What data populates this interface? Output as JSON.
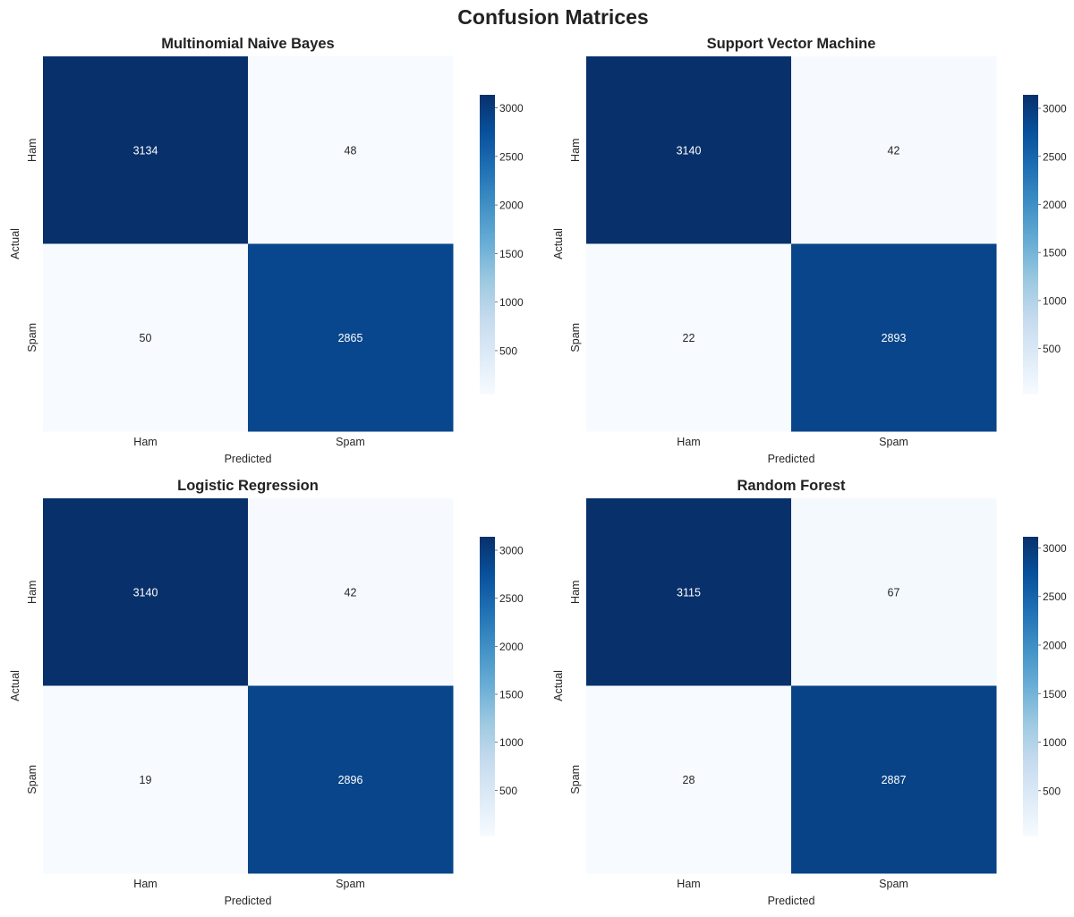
{
  "title": "Confusion Matrices",
  "chart_data": [
    {
      "type": "heatmap",
      "title": "Multinomial Naive Bayes",
      "xlabel": "Predicted",
      "ylabel": "Actual",
      "x_categories": [
        "Ham",
        "Spam"
      ],
      "y_categories": [
        "Ham",
        "Spam"
      ],
      "values": [
        [
          3134,
          48
        ],
        [
          50,
          2865
        ]
      ],
      "colorbar_ticks": [
        500,
        1000,
        1500,
        2000,
        2500,
        3000
      ],
      "colorbar_range": [
        48,
        3134
      ]
    },
    {
      "type": "heatmap",
      "title": "Support Vector Machine",
      "xlabel": "Predicted",
      "ylabel": "Actual",
      "x_categories": [
        "Ham",
        "Spam"
      ],
      "y_categories": [
        "Ham",
        "Spam"
      ],
      "values": [
        [
          3140,
          42
        ],
        [
          22,
          2893
        ]
      ],
      "colorbar_ticks": [
        500,
        1000,
        1500,
        2000,
        2500,
        3000
      ],
      "colorbar_range": [
        22,
        3140
      ]
    },
    {
      "type": "heatmap",
      "title": "Logistic Regression",
      "xlabel": "Predicted",
      "ylabel": "Actual",
      "x_categories": [
        "Ham",
        "Spam"
      ],
      "y_categories": [
        "Ham",
        "Spam"
      ],
      "values": [
        [
          3140,
          42
        ],
        [
          19,
          2896
        ]
      ],
      "colorbar_ticks": [
        500,
        1000,
        1500,
        2000,
        2500,
        3000
      ],
      "colorbar_range": [
        19,
        3140
      ]
    },
    {
      "type": "heatmap",
      "title": "Random Forest",
      "xlabel": "Predicted",
      "ylabel": "Actual",
      "x_categories": [
        "Ham",
        "Spam"
      ],
      "y_categories": [
        "Ham",
        "Spam"
      ],
      "values": [
        [
          3115,
          67
        ],
        [
          28,
          2887
        ]
      ],
      "colorbar_ticks": [
        500,
        1000,
        1500,
        2000,
        2500,
        3000
      ],
      "colorbar_range": [
        28,
        3115
      ]
    }
  ],
  "colormap": {
    "name": "Blues",
    "stops": [
      "#f7fbff",
      "#deebf7",
      "#c6dbef",
      "#9ecae1",
      "#6baed6",
      "#4292c6",
      "#2171b5",
      "#08519c",
      "#08306b"
    ]
  }
}
